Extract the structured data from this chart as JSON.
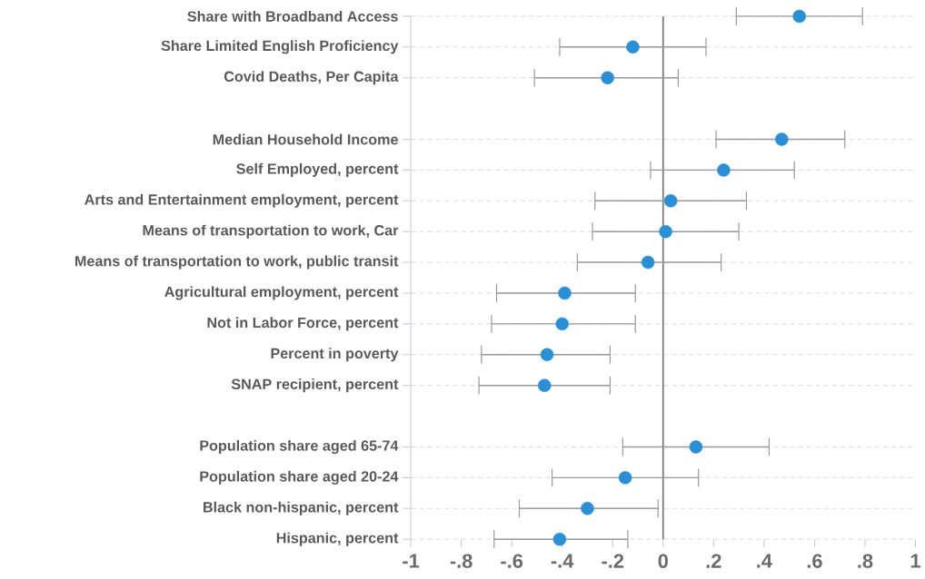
{
  "chart_data": {
    "type": "scatter",
    "orientation": "horizontal",
    "categories": [
      "Share with Broadband Access",
      "Share Limited English Proficiency",
      "Covid Deaths, Per Capita",
      null,
      "Median Household Income",
      "Self Employed, percent",
      "Arts and Entertainment employment, percent",
      "Means of transportation to work, Car",
      "Means of transportation to work, public transit",
      "Agricultural employment, percent",
      "Not in Labor Force, percent",
      "Percent in poverty",
      "SNAP recipient, percent",
      null,
      "Population share aged 65-74",
      "Population share aged 20-24",
      "Black non-hispanic, percent",
      "Hispanic, percent"
    ],
    "series": [
      {
        "color": "#2a8fd4",
        "values": [
          0.54,
          -0.12,
          -0.22,
          null,
          0.47,
          0.24,
          0.03,
          0.01,
          -0.06,
          -0.39,
          -0.4,
          -0.46,
          -0.47,
          null,
          0.13,
          -0.15,
          -0.3,
          -0.41
        ],
        "errors": [
          [
            0.29,
            0.79
          ],
          [
            -0.41,
            0.17
          ],
          [
            -0.51,
            0.06
          ],
          null,
          [
            0.21,
            0.72
          ],
          [
            -0.05,
            0.52
          ],
          [
            -0.27,
            0.33
          ],
          [
            -0.28,
            0.3
          ],
          [
            -0.34,
            0.23
          ],
          [
            -0.66,
            -0.11
          ],
          [
            -0.68,
            -0.11
          ],
          [
            -0.72,
            -0.21
          ],
          [
            -0.73,
            -0.21
          ],
          null,
          [
            -0.16,
            0.42
          ],
          [
            -0.44,
            0.14
          ],
          [
            -0.57,
            -0.02
          ],
          [
            -0.67,
            -0.14
          ]
        ]
      }
    ],
    "xlim": [
      -1,
      1
    ],
    "xticks": [
      -1,
      {
        "value": -0.8,
        "label": "-.8"
      },
      {
        "value": -0.6,
        "label": "-.6"
      },
      {
        "value": -0.4,
        "label": "-.4"
      },
      {
        "value": -0.2,
        "label": "-.2"
      },
      0,
      {
        "value": 0.2,
        "label": ".2"
      },
      {
        "value": 0.4,
        "label": ".4"
      },
      {
        "value": 0.6,
        "label": ".6"
      },
      {
        "value": 0.8,
        "label": ".8"
      },
      1
    ],
    "grid": "y",
    "ref_lines": [
      {
        "axis": "x",
        "value": 0,
        "color": "#808080"
      }
    ]
  }
}
